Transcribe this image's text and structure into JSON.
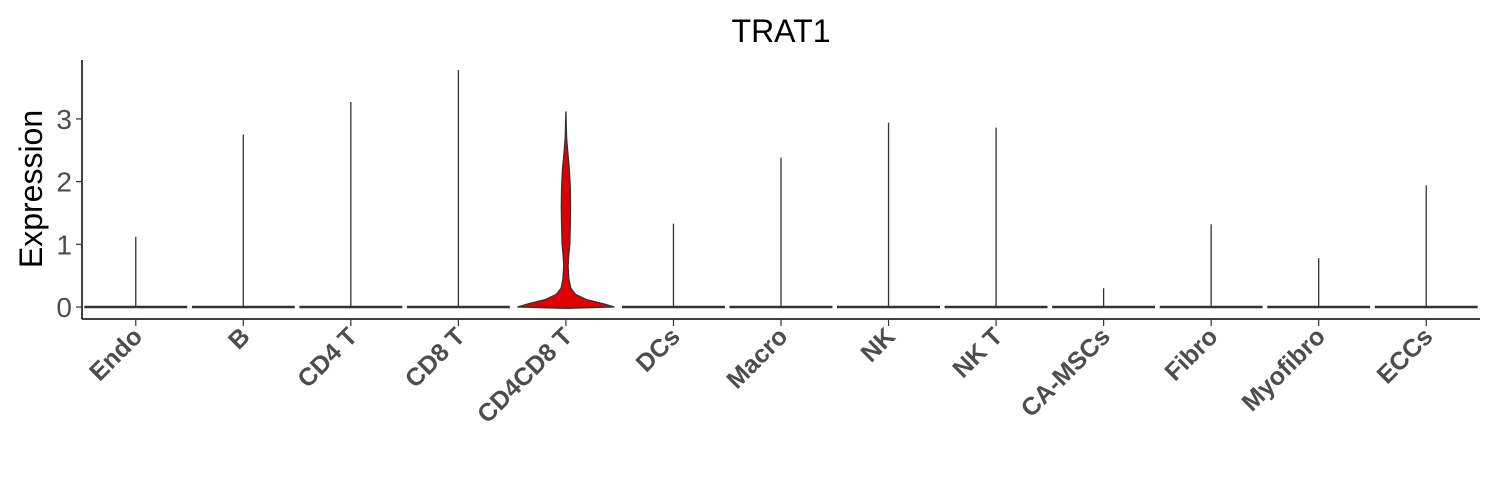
{
  "chart_data": {
    "type": "violin",
    "title": "TRAT1",
    "xlabel": "",
    "ylabel": "Expression",
    "ylim": [
      -0.2,
      3.9
    ],
    "yticks": [
      "0",
      "1",
      "2",
      "3"
    ],
    "grid": false,
    "legend": "none",
    "categories": [
      "Endo",
      "B",
      "CD4 T",
      "CD8 T",
      "CD4CD8 T",
      "DCs",
      "Macro",
      "NK",
      "NK T",
      "CA-MSCs",
      "Fibro",
      "Myofibro",
      "ECCs"
    ],
    "series": [
      {
        "max_values": [
          1.12,
          2.75,
          3.27,
          3.78,
          3.12,
          1.33,
          2.38,
          2.94,
          2.86,
          0.3,
          1.32,
          0.78,
          1.94
        ],
        "fill_colors": [
          "#ffffff",
          "#ffffff",
          "#ffffff",
          "#ffffff",
          "#e00000",
          "#ffffff",
          "#ffffff",
          "#ffffff",
          "#ffffff",
          "#ffffff",
          "#ffffff",
          "#ffffff",
          "#ffffff"
        ]
      }
    ],
    "highlight_color": "#e00000"
  }
}
